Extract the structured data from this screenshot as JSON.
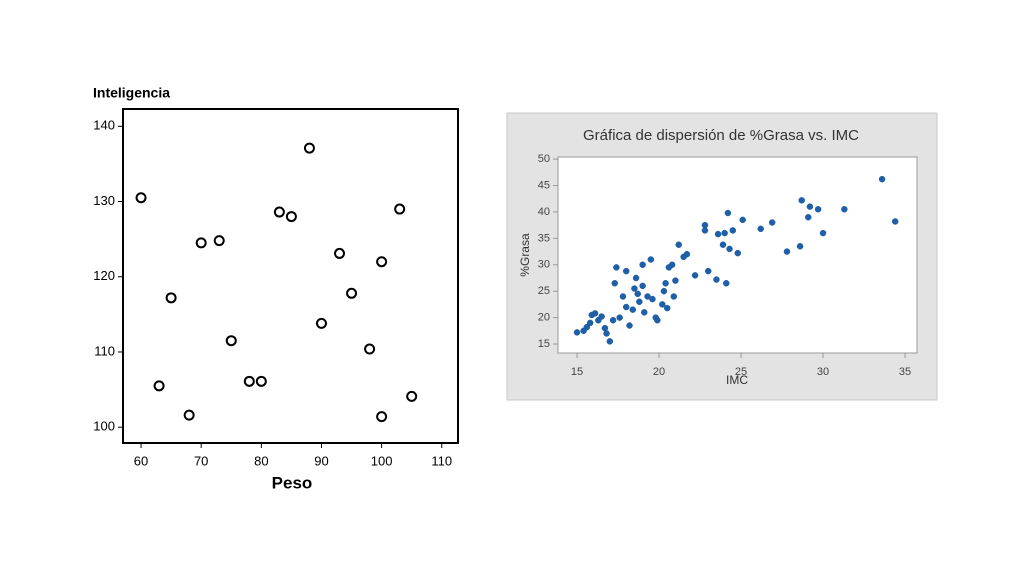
{
  "chart_data": [
    {
      "type": "scatter",
      "y_label": "Inteligencia",
      "x_label": "Peso",
      "color": "#000000",
      "x": [
        60,
        63,
        65,
        68,
        70,
        73,
        75,
        78,
        80,
        83,
        85,
        88,
        90,
        93,
        95,
        98,
        100,
        100,
        103,
        105
      ],
      "values": [
        130.5,
        105.5,
        117.2,
        101.6,
        124.5,
        124.8,
        111.5,
        106.1,
        106.1,
        128.6,
        128,
        137.1,
        113.8,
        123.1,
        117.8,
        110.4,
        122,
        101.4,
        129,
        104.1
      ],
      "xlim": [
        57,
        112.7
      ],
      "ylim": [
        97.9,
        142.3
      ],
      "xticks": [
        60,
        70,
        80,
        90,
        100,
        110
      ],
      "yticks": [
        100,
        110,
        120,
        130,
        140
      ]
    },
    {
      "type": "scatter",
      "title": "Gráfica de dispersión de %Grasa vs. IMC",
      "y_label": "%Grasa",
      "x_label": "IMC",
      "color": "#1f5fa8",
      "x": [
        15,
        15.4,
        15.6,
        15.8,
        15.9,
        16.1,
        16.3,
        16.5,
        16.7,
        16.8,
        17,
        17.2,
        17.3,
        17.4,
        17.6,
        17.8,
        18,
        18,
        18.2,
        18.4,
        18.5,
        18.6,
        18.7,
        18.8,
        19,
        19,
        19.1,
        19.3,
        19.5,
        19.6,
        19.8,
        19.9,
        20.2,
        20.3,
        20.4,
        20.5,
        20.6,
        20.8,
        20.9,
        21,
        21.2,
        21.5,
        21.7,
        22.2,
        22.8,
        22.8,
        23,
        23.5,
        23.6,
        23.9,
        24,
        24.1,
        24.2,
        24.3,
        24.5,
        24.8,
        25.1,
        26.2,
        26.9,
        27.8,
        28.6,
        28.7,
        29.1,
        29.2,
        29.7,
        30,
        31.3,
        33.6,
        34.4
      ],
      "values": [
        17.2,
        17.5,
        18.2,
        19,
        20.5,
        20.8,
        19.5,
        20.2,
        18,
        17,
        15.5,
        19.5,
        26.5,
        29.5,
        20,
        24,
        22,
        28.8,
        18.5,
        21.5,
        25.5,
        27.5,
        24.5,
        23,
        30,
        26,
        21,
        24,
        31,
        23.5,
        20,
        19.5,
        22.5,
        25,
        26.5,
        21.8,
        29.5,
        30,
        24,
        27,
        33.8,
        31.5,
        32,
        28,
        36.5,
        37.5,
        28.8,
        27.2,
        35.8,
        33.8,
        36,
        26.5,
        39.8,
        33,
        36.5,
        32.2,
        38.5,
        36.8,
        38,
        32.5,
        33.5,
        42.2,
        39,
        41,
        40.5,
        36,
        40.5,
        46.2,
        38.2
      ],
      "xlim": [
        13.84,
        35.73
      ],
      "ylim": [
        13.3,
        50.4
      ],
      "xticks": [
        15,
        20,
        25,
        30,
        35
      ],
      "yticks": [
        15,
        20,
        25,
        30,
        35,
        40,
        45,
        50
      ]
    }
  ]
}
